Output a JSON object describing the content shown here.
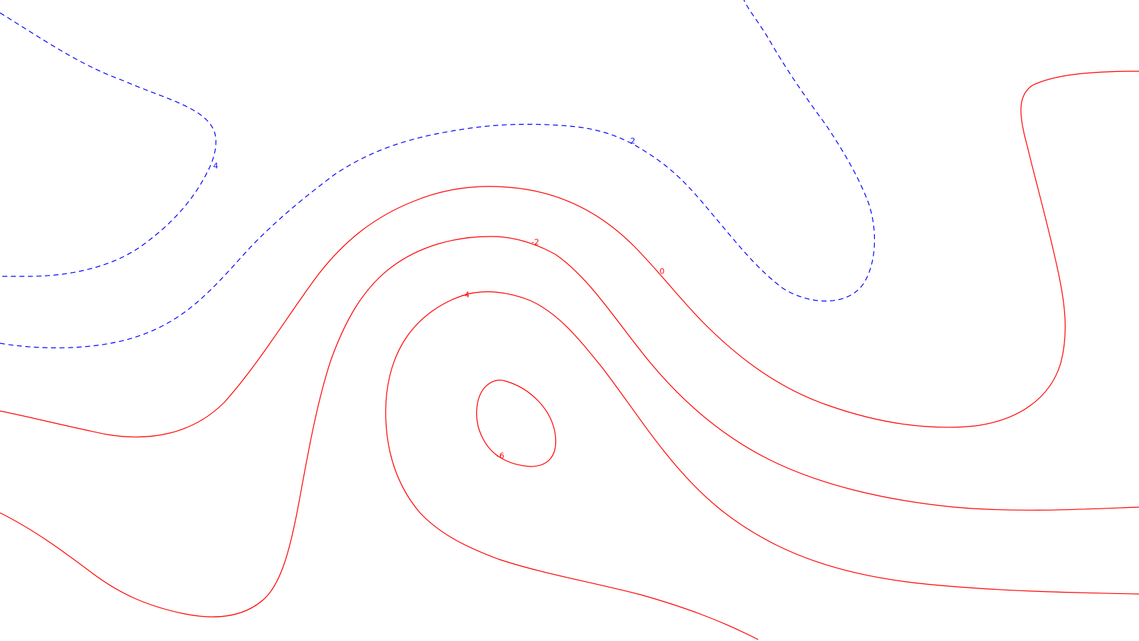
{
  "chart_data": {
    "type": "contour",
    "title": "",
    "xlabel": "",
    "ylabel": "",
    "grid": false,
    "legend": false,
    "colors": {
      "positive": "#0000ff",
      "negative": "#ff0000",
      "zero": "#ff0000",
      "background": "#ffffff"
    },
    "line_styles": {
      "positive": "dashed",
      "non_positive": "solid"
    },
    "levels": [
      {
        "value": 4,
        "label": "4",
        "style": "dashed",
        "color": "#0000ff"
      },
      {
        "value": 2,
        "label": "2",
        "style": "dashed",
        "color": "#0000ff"
      },
      {
        "value": 0,
        "label": "0",
        "style": "solid",
        "color": "#ff0000"
      },
      {
        "value": -2,
        "label": "-2",
        "style": "solid",
        "color": "#ff0000"
      },
      {
        "value": -4,
        "label": "-4",
        "style": "solid",
        "color": "#ff0000"
      },
      {
        "value": -6,
        "label": "-6",
        "style": "solid",
        "color": "#ff0000"
      }
    ]
  }
}
